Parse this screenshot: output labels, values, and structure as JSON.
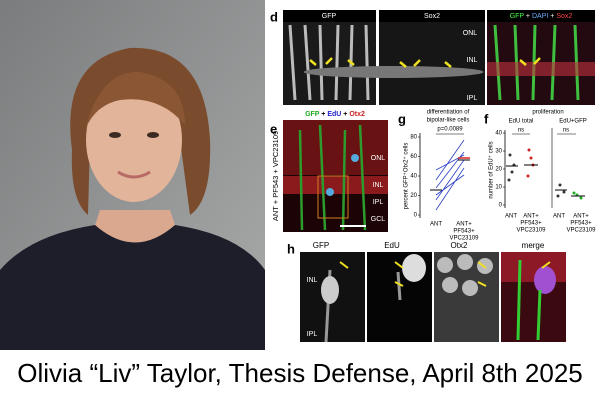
{
  "caption": "Olivia “Liv” Taylor, Thesis Defense, April 8th 2025",
  "panel_d": {
    "letter": "d",
    "headers": [
      "GFP",
      "Sox2"
    ],
    "merge_header": [
      "GFP",
      "+",
      "DAPI",
      "+",
      "Sox2"
    ],
    "layers": [
      "ONL",
      "INL",
      "IPL"
    ]
  },
  "panel_e": {
    "letter": "e",
    "header": [
      "GFP",
      "+",
      "EdU",
      "+",
      "Otx2"
    ],
    "side_label": "ANT + PF543 + VPC23109",
    "layers": [
      "ONL",
      "INL",
      "IPL",
      "GCL"
    ]
  },
  "panel_g": {
    "letter": "g",
    "title": [
      "differentiation of",
      "bipolar-like cells"
    ],
    "ylabel": "percent GFP⁺Otx2⁺ cells",
    "yticks": [
      "0",
      "20",
      "40",
      "60",
      "80"
    ],
    "p_value": "p=0.0089",
    "categories": [
      [
        "ANT"
      ],
      [
        "ANT+",
        "PF543+",
        "VPC23109"
      ]
    ]
  },
  "panel_f": {
    "letter": "f",
    "title": "proliferation",
    "subtitles": [
      "EdU total",
      "EdU+GFP"
    ],
    "ylabel": "number of EdU⁺ cells",
    "yticks": [
      "0",
      "10",
      "20",
      "30",
      "40"
    ],
    "ns": [
      "ns",
      "ns"
    ],
    "categories": [
      [
        "ANT"
      ],
      [
        "ANT+",
        "PF543+",
        "VPC23109"
      ],
      [
        "ANT"
      ],
      [
        "ANT+",
        "PF543+",
        "VPC23109"
      ]
    ]
  },
  "panel_h": {
    "letter": "h",
    "headers": [
      "GFP",
      "EdU",
      "Otx2",
      "merge"
    ],
    "layers": [
      "INL",
      "IPL"
    ]
  }
}
